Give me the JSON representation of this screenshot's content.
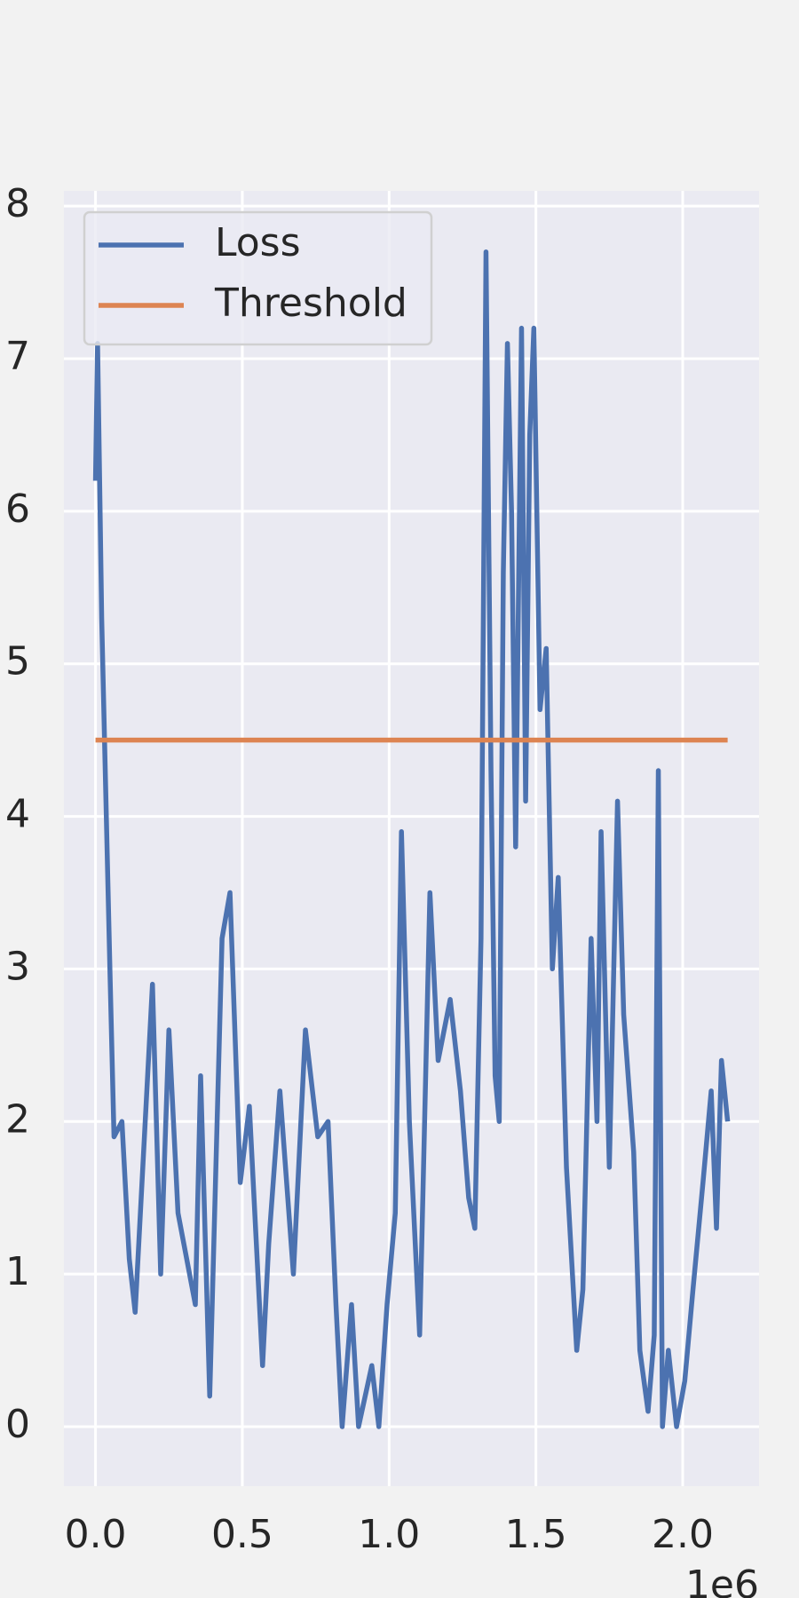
{
  "chart_data": {
    "type": "line",
    "x_offset_label": "1e6",
    "xlim": [
      -107600,
      2260000
    ],
    "ylim": [
      -0.39,
      8.1
    ],
    "xticks": [
      {
        "value": 0,
        "label": "0.0"
      },
      {
        "value": 500000,
        "label": "0.5"
      },
      {
        "value": 1000000,
        "label": "1.0"
      },
      {
        "value": 1500000,
        "label": "1.5"
      },
      {
        "value": 2000000,
        "label": "2.0"
      }
    ],
    "yticks": [
      0,
      1,
      2,
      3,
      4,
      5,
      6,
      7,
      8
    ],
    "grid": true,
    "legend": "upper left",
    "series": [
      {
        "name": "Loss",
        "color": "#4c72b0",
        "x": [
          0,
          7000,
          21000,
          49000,
          63000,
          90000,
          115000,
          135000,
          194000,
          222000,
          250000,
          281000,
          340000,
          358000,
          389000,
          431000,
          458000,
          493000,
          524000,
          569000,
          590000,
          628000,
          674000,
          715000,
          757000,
          792000,
          819000,
          840000,
          872000,
          896000,
          941000,
          965000,
          993000,
          1021000,
          1042000,
          1069000,
          1104000,
          1139000,
          1167000,
          1208000,
          1243000,
          1271000,
          1292000,
          1313000,
          1330000,
          1347000,
          1361000,
          1375000,
          1389000,
          1403000,
          1417000,
          1431000,
          1451000,
          1465000,
          1479000,
          1493000,
          1514000,
          1535000,
          1556000,
          1576000,
          1604000,
          1639000,
          1660000,
          1688000,
          1708000,
          1722000,
          1750000,
          1778000,
          1799000,
          1833000,
          1854000,
          1882000,
          1903000,
          1917000,
          1931000,
          1951000,
          1979000,
          2007000,
          2035000,
          2069000,
          2097000,
          2115000,
          2132000,
          2153000
        ],
        "values": [
          6.2,
          7.1,
          5.3,
          3.0,
          1.9,
          2.0,
          1.1,
          0.75,
          2.9,
          1.0,
          2.6,
          1.4,
          0.8,
          2.3,
          0.2,
          3.2,
          3.5,
          1.6,
          2.1,
          0.4,
          1.2,
          2.2,
          1.0,
          2.6,
          1.9,
          2.0,
          0.8,
          0.0,
          0.8,
          0.0,
          0.4,
          0.0,
          0.8,
          1.4,
          3.9,
          2.0,
          0.6,
          3.5,
          2.4,
          2.8,
          2.2,
          1.5,
          1.3,
          3.2,
          7.7,
          4.3,
          2.3,
          2.0,
          5.6,
          7.1,
          6.0,
          3.8,
          7.2,
          4.1,
          6.5,
          7.2,
          4.7,
          5.1,
          3.0,
          3.6,
          1.7,
          0.5,
          0.9,
          3.2,
          2.0,
          3.9,
          1.7,
          4.1,
          2.7,
          1.8,
          0.5,
          0.1,
          0.6,
          4.3,
          0.0,
          0.5,
          0.0,
          0.3,
          0.9,
          1.6,
          2.2,
          1.3,
          2.4,
          2.0
        ]
      },
      {
        "name": "Threshold",
        "color": "#dd8452",
        "x": [
          0,
          2153000
        ],
        "values": [
          4.5,
          4.5
        ]
      }
    ]
  }
}
